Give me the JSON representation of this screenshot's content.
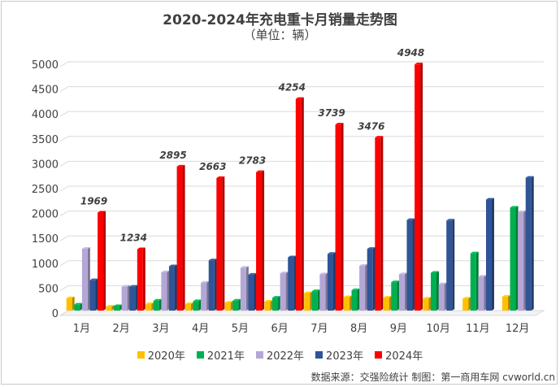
{
  "chart_data": {
    "type": "bar",
    "title": "2020-2024年充电重卡月销量走势图",
    "subtitle": "（单位：辆）",
    "categories": [
      "1月",
      "2月",
      "3月",
      "4月",
      "5月",
      "6月",
      "7月",
      "8月",
      "9月",
      "10月",
      "11月",
      "12月"
    ],
    "ylim": [
      0,
      5000
    ],
    "yticks": [
      0,
      500,
      1000,
      1500,
      2000,
      2500,
      3000,
      3500,
      4000,
      4500,
      5000
    ],
    "series": [
      {
        "name": "2020年",
        "color": "#ffc000",
        "values": [
          250,
          80,
          130,
          130,
          160,
          180,
          350,
          270,
          260,
          240,
          240,
          280
        ]
      },
      {
        "name": "2021年",
        "color": "#00b050",
        "values": [
          120,
          90,
          200,
          190,
          200,
          260,
          390,
          410,
          570,
          760,
          1150,
          2070
        ]
      },
      {
        "name": "2022年",
        "color": "#b4a7d6",
        "values": [
          1240,
          480,
          770,
          560,
          860,
          750,
          730,
          900,
          730,
          530,
          680,
          1980
        ]
      },
      {
        "name": "2023年",
        "color": "#2f5597",
        "values": [
          610,
          480,
          890,
          1010,
          720,
          1070,
          1140,
          1240,
          1820,
          1810,
          2230,
          2670
        ]
      },
      {
        "name": "2024年",
        "color": "#ff0000",
        "values": [
          1969,
          1234,
          2895,
          2663,
          2783,
          4254,
          3739,
          3476,
          4948,
          null,
          null,
          null
        ]
      }
    ],
    "data_labels": [
      "1969",
      "1234",
      "2895",
      "2663",
      "2783",
      "4254",
      "3739",
      "3476",
      "4948"
    ]
  },
  "source": "数据来源：交强险统计  制图：第一商用车网 cvworld.cn"
}
